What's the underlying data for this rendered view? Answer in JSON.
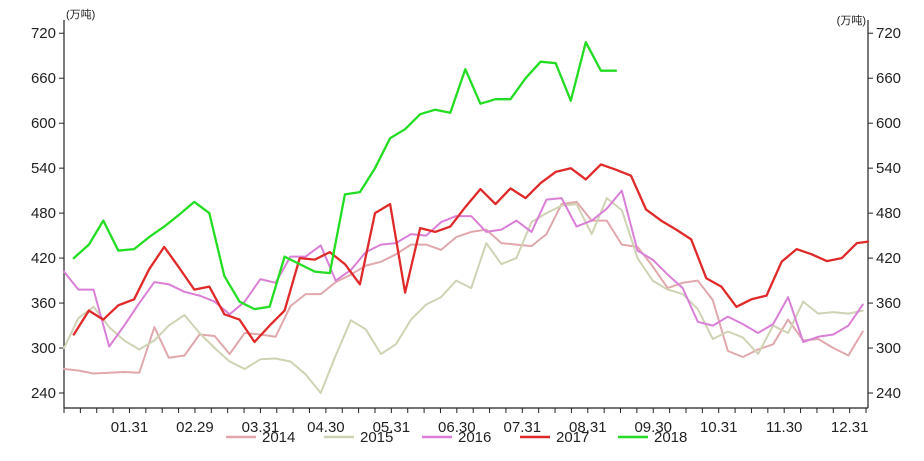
{
  "chart_data": {
    "type": "line",
    "title": "",
    "xlabel": "",
    "ylabel": "",
    "y_unit_left": "(万吨)",
    "y_unit_right": "(万吨)",
    "ylim": [
      220,
      735
    ],
    "yticks": [
      240,
      300,
      360,
      420,
      480,
      540,
      600,
      660,
      720
    ],
    "x_range": [
      0,
      12.28
    ],
    "xticks": [
      {
        "label": "01.31",
        "x": 1
      },
      {
        "label": "02.29",
        "x": 2
      },
      {
        "label": "03.31",
        "x": 3
      },
      {
        "label": "04.30",
        "x": 4
      },
      {
        "label": "05.31",
        "x": 5
      },
      {
        "label": "06.30",
        "x": 6
      },
      {
        "label": "07.31",
        "x": 7
      },
      {
        "label": "08.31",
        "x": 8
      },
      {
        "label": "09.30",
        "x": 9
      },
      {
        "label": "10.31",
        "x": 10
      },
      {
        "label": "11.30",
        "x": 11
      },
      {
        "label": "12.31",
        "x": 12
      }
    ],
    "grid": false,
    "legend_position": "bottom",
    "series": [
      {
        "name": "2014",
        "color": "#e0a8ad",
        "x": [
          0.0,
          0.22,
          0.45,
          0.69,
          0.92,
          1.15,
          1.38,
          1.6,
          1.84,
          2.07,
          2.3,
          2.53,
          2.76,
          3.0,
          3.23,
          3.46,
          3.69,
          3.92,
          4.15,
          4.38,
          4.61,
          4.84,
          5.07,
          5.3,
          5.53,
          5.76,
          5.99,
          6.22,
          6.45,
          6.68,
          6.91,
          7.14,
          7.37,
          7.6,
          7.83,
          8.06,
          8.29,
          8.52,
          8.76,
          8.99,
          9.22,
          9.45,
          9.68,
          9.91,
          10.14,
          10.37,
          10.6,
          10.83,
          11.06,
          11.29,
          11.52,
          11.75,
          11.98,
          12.2
        ],
        "values": [
          272,
          270,
          266,
          267,
          268,
          267,
          328,
          287,
          290,
          318,
          316,
          292,
          320,
          318,
          315,
          356,
          372,
          372,
          388,
          398,
          410,
          415,
          425,
          438,
          438,
          431,
          448,
          455,
          458,
          440,
          438,
          436,
          452,
          492,
          495,
          470,
          470,
          438,
          435,
          409,
          380,
          387,
          390,
          364,
          296,
          288,
          298,
          305,
          338,
          310,
          312,
          300,
          290,
          322
        ]
      },
      {
        "name": "2015",
        "color": "#cfd3b4",
        "x": [
          0.0,
          0.22,
          0.45,
          0.69,
          0.92,
          1.15,
          1.38,
          1.6,
          1.84,
          2.07,
          2.3,
          2.53,
          2.76,
          3.0,
          3.23,
          3.46,
          3.69,
          3.92,
          4.15,
          4.38,
          4.61,
          4.84,
          5.07,
          5.3,
          5.53,
          5.76,
          5.99,
          6.22,
          6.45,
          6.68,
          6.91,
          7.14,
          7.37,
          7.6,
          7.83,
          8.06,
          8.29,
          8.52,
          8.76,
          8.99,
          9.22,
          9.45,
          9.68,
          9.91,
          10.14,
          10.37,
          10.6,
          10.83,
          11.06,
          11.29,
          11.52,
          11.75,
          11.98,
          12.2
        ],
        "values": [
          300,
          340,
          355,
          328,
          310,
          298,
          310,
          330,
          344,
          320,
          300,
          282,
          272,
          285,
          286,
          282,
          265,
          240,
          290,
          337,
          325,
          292,
          305,
          338,
          358,
          368,
          390,
          380,
          440,
          412,
          420,
          468,
          480,
          490,
          492,
          452,
          500,
          484,
          420,
          390,
          378,
          372,
          352,
          312,
          322,
          314,
          292,
          330,
          320,
          362,
          346,
          348,
          346,
          350
        ]
      },
      {
        "name": "2016",
        "color": "#d980d6",
        "x": [
          0.0,
          0.22,
          0.45,
          0.69,
          0.92,
          1.15,
          1.38,
          1.6,
          1.84,
          2.07,
          2.3,
          2.53,
          2.76,
          3.0,
          3.23,
          3.46,
          3.69,
          3.92,
          4.15,
          4.38,
          4.61,
          4.84,
          5.07,
          5.3,
          5.53,
          5.76,
          5.99,
          6.22,
          6.45,
          6.68,
          6.91,
          7.14,
          7.37,
          7.6,
          7.83,
          8.06,
          8.29,
          8.52,
          8.76,
          8.99,
          9.22,
          9.45,
          9.68,
          9.91,
          10.14,
          10.37,
          10.6,
          10.83,
          11.06,
          11.29,
          11.52,
          11.75,
          11.98,
          12.2
        ],
        "values": [
          402,
          378,
          378,
          302,
          330,
          360,
          388,
          385,
          375,
          370,
          362,
          345,
          362,
          392,
          387,
          422,
          422,
          437,
          390,
          404,
          428,
          438,
          440,
          452,
          450,
          468,
          476,
          476,
          455,
          458,
          470,
          455,
          498,
          500,
          462,
          470,
          486,
          510,
          430,
          418,
          398,
          380,
          335,
          330,
          342,
          332,
          320,
          332,
          368,
          308,
          315,
          318,
          330,
          358
        ]
      },
      {
        "name": "2017",
        "color": "#e02a2a",
        "x": [
          0.15,
          0.38,
          0.6,
          0.83,
          1.07,
          1.3,
          1.53,
          1.76,
          1.99,
          2.22,
          2.45,
          2.68,
          2.91,
          3.14,
          3.37,
          3.6,
          3.83,
          4.06,
          4.29,
          4.52,
          4.75,
          4.98,
          5.21,
          5.44,
          5.67,
          5.9,
          6.13,
          6.36,
          6.59,
          6.82,
          7.05,
          7.28,
          7.51,
          7.74,
          7.97,
          8.2,
          8.43,
          8.66,
          8.89,
          9.12,
          9.35,
          9.58,
          9.81,
          10.04,
          10.27,
          10.5,
          10.73,
          10.96,
          11.19,
          11.42,
          11.65,
          11.88,
          12.11,
          12.28
        ],
        "values": [
          318,
          350,
          338,
          357,
          365,
          405,
          435,
          407,
          378,
          382,
          345,
          338,
          308,
          330,
          350,
          420,
          418,
          428,
          412,
          385,
          480,
          492,
          374,
          460,
          455,
          462,
          488,
          512,
          492,
          513,
          500,
          520,
          535,
          540,
          525,
          545,
          538,
          530,
          485,
          470,
          458,
          445,
          393,
          382,
          355,
          365,
          370,
          415,
          432,
          425,
          416,
          420,
          440,
          442
        ]
      },
      {
        "name": "2018",
        "color": "#22dd22",
        "x": [
          0.15,
          0.38,
          0.6,
          0.83,
          1.07,
          1.3,
          1.53,
          1.76,
          1.99,
          2.22,
          2.45,
          2.68,
          2.91,
          3.14,
          3.37,
          3.6,
          3.83,
          4.06,
          4.29,
          4.52,
          4.75,
          4.98,
          5.21,
          5.44,
          5.67,
          5.9,
          6.13,
          6.36,
          6.59,
          6.82,
          7.05,
          7.28,
          7.51,
          7.74,
          7.97,
          8.2,
          8.43
        ],
        "values": [
          420,
          438,
          470,
          430,
          432,
          448,
          462,
          478,
          495,
          480,
          396,
          362,
          352,
          355,
          422,
          412,
          402,
          400,
          505,
          508,
          540,
          580,
          592,
          612,
          618,
          614,
          672,
          626,
          632,
          632,
          660,
          682,
          680,
          630,
          708,
          670,
          670
        ]
      }
    ]
  }
}
